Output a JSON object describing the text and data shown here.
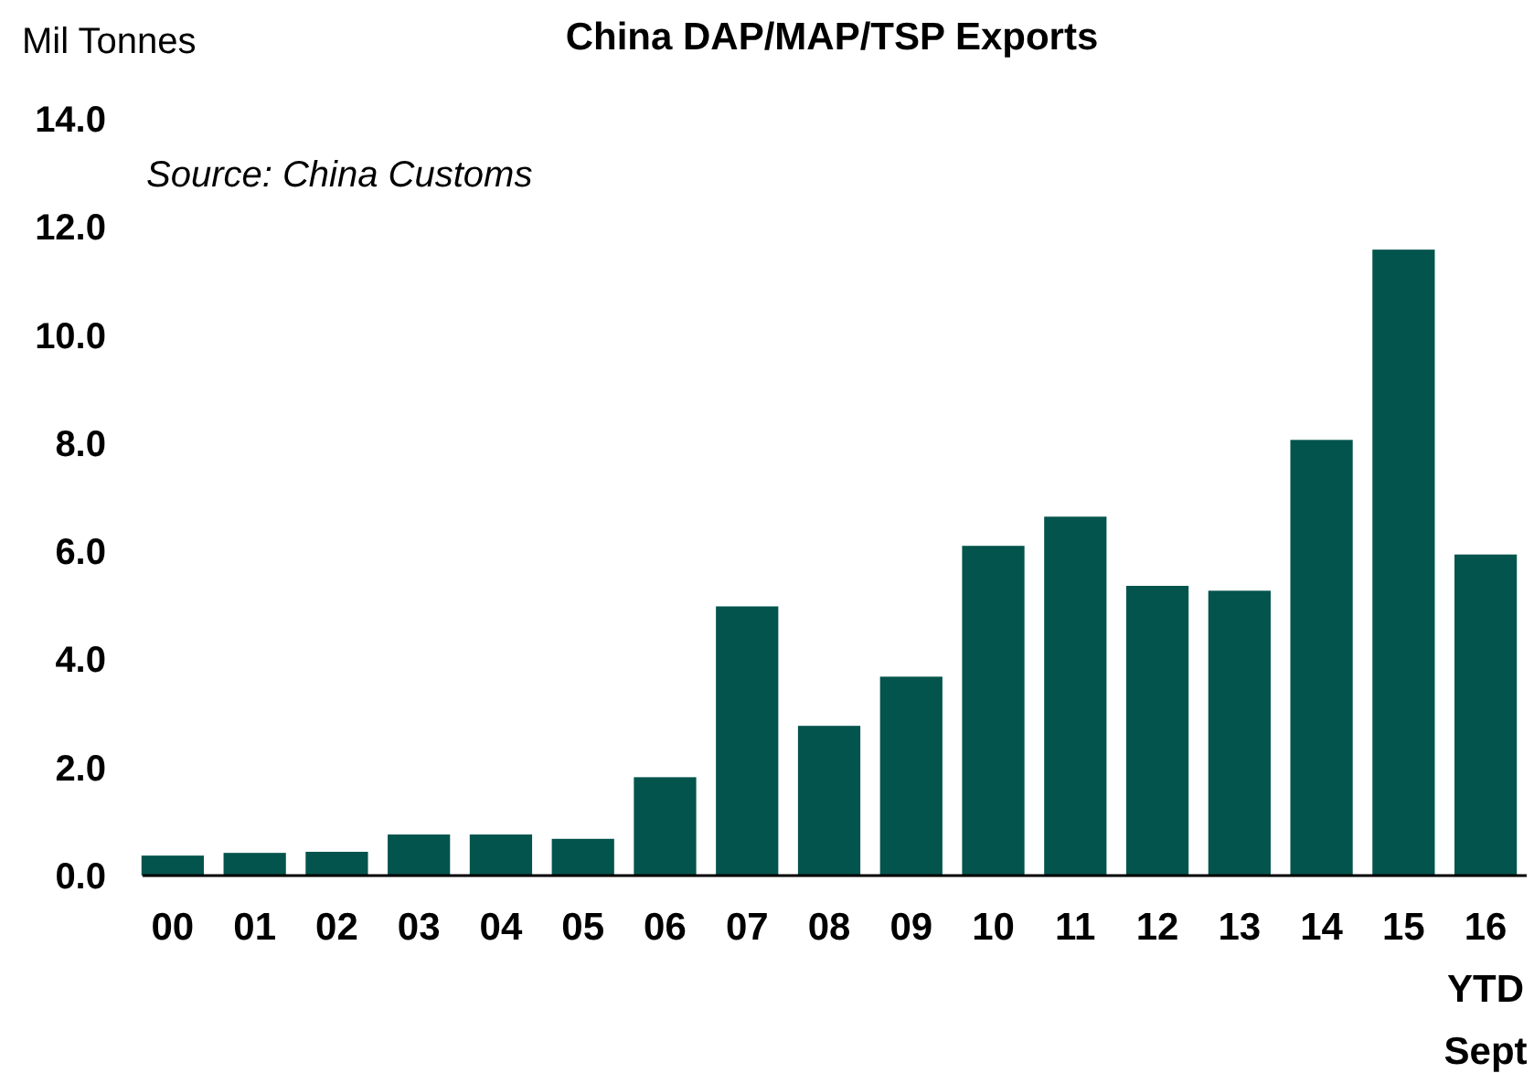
{
  "chart_data": {
    "type": "bar",
    "title": "China DAP/MAP/TSP Exports",
    "ylabel": "Mil Tonnes",
    "annotations": [
      "Source: China Customs"
    ],
    "categories": [
      "00",
      "01",
      "02",
      "03",
      "04",
      "05",
      "06",
      "07",
      "08",
      "09",
      "10",
      "11",
      "12",
      "13",
      "14",
      "15",
      "16\nYTD\nSept"
    ],
    "values": [
      0.37,
      0.42,
      0.44,
      0.76,
      0.76,
      0.68,
      1.82,
      4.98,
      2.77,
      3.68,
      6.1,
      6.64,
      5.36,
      5.27,
      8.06,
      11.58,
      5.94
    ],
    "color": "#03544c",
    "ylim": [
      0,
      14
    ],
    "yticks": [
      {
        "value": 0,
        "label": "0.0"
      },
      {
        "value": 2,
        "label": "2.0"
      },
      {
        "value": 4,
        "label": "4.0"
      },
      {
        "value": 6,
        "label": "6.0"
      },
      {
        "value": 8,
        "label": "8.0"
      },
      {
        "value": 10,
        "label": "10.0"
      },
      {
        "value": 12,
        "label": "12.0"
      },
      {
        "value": 14,
        "label": "14.0"
      }
    ],
    "grid": false
  }
}
